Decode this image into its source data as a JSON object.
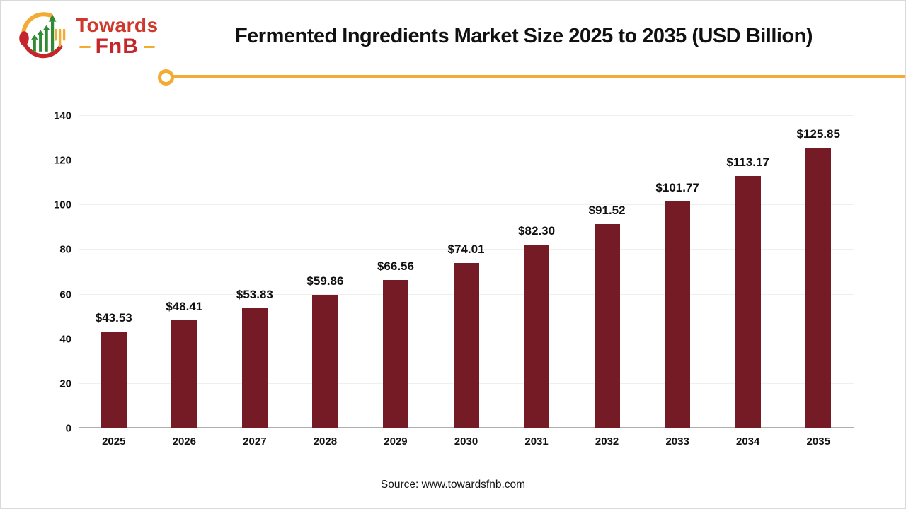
{
  "header": {
    "title": "Fermented Ingredients Market Size 2025 to 2035 (USD Billion)"
  },
  "logo": {
    "brand_top": "Towards",
    "brand_bottom": "FnB"
  },
  "footer": {
    "source": "Source: www.towardsfnb.com"
  },
  "colors": {
    "bar": "#751B26",
    "gold": "#F2AC33",
    "logo_red": "#CE382D",
    "fnb_red": "#C5262C",
    "logo_green": "#2E8B31",
    "spoon_red": "#C5262C",
    "axis_line": "#AFAFAF",
    "gridline": "#F1EFEC"
  },
  "chart_data": {
    "type": "bar",
    "title": "Fermented Ingredients Market Size 2025 to 2035 (USD Billion)",
    "categories": [
      "2025",
      "2026",
      "2027",
      "2028",
      "2029",
      "2030",
      "2031",
      "2032",
      "2033",
      "2034",
      "2035"
    ],
    "values": [
      43.53,
      48.41,
      53.83,
      59.86,
      66.56,
      74.01,
      82.3,
      91.52,
      101.77,
      113.17,
      125.85
    ],
    "labels": [
      "$43.53",
      "$48.41",
      "$53.83",
      "$59.86",
      "$66.56",
      "$74.01",
      "$82.30",
      "$91.52",
      "$101.77",
      "$113.17",
      "$125.85"
    ],
    "unit": "USD Billion",
    "xlabel": "",
    "ylabel": "",
    "ylim": [
      0,
      140
    ],
    "yticks": [
      0,
      20,
      40,
      60,
      80,
      100,
      120,
      140
    ],
    "grid": true,
    "legend": false,
    "bar_color": "#751B26"
  }
}
